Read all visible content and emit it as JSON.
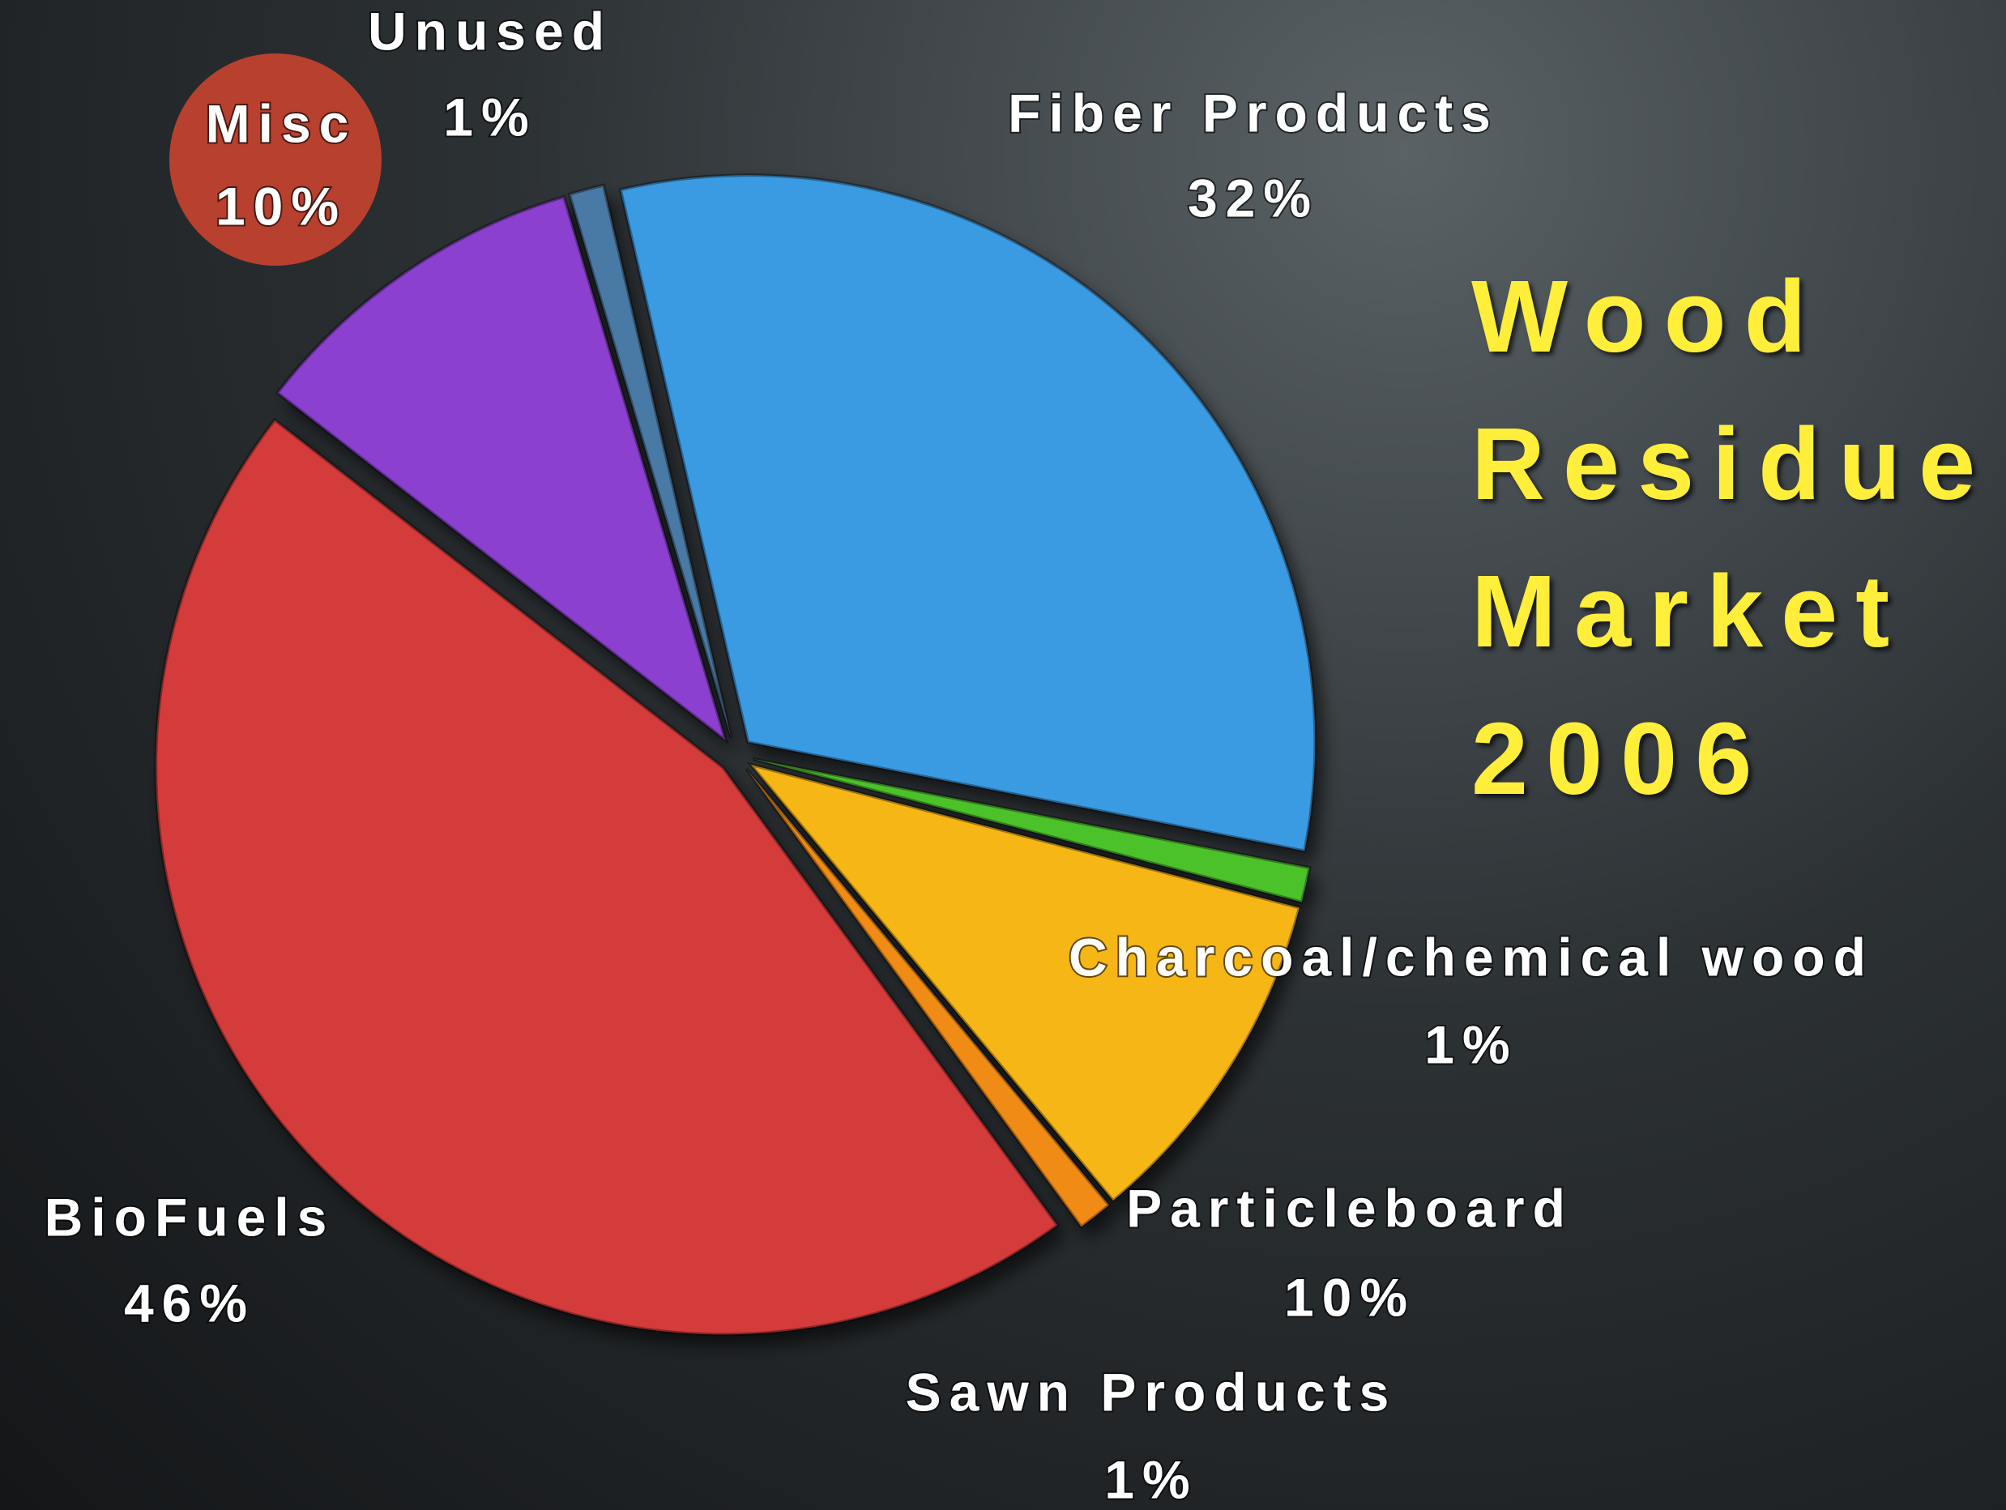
{
  "chart_data": {
    "type": "pie",
    "title": "Wood Residue Market 2006",
    "categories": [
      "Fiber Products",
      "Charcoal/chemical wood",
      "Particleboard",
      "Sawn Products",
      "BioFuels",
      "Misc",
      "Unused"
    ],
    "values": [
      32,
      1,
      10,
      1,
      46,
      10,
      1
    ],
    "value_labels": [
      "32%",
      "1%",
      "10%",
      "1%",
      "46%",
      "10%",
      "1%"
    ],
    "colors": [
      "#3b9be2",
      "#4cc229",
      "#f6b614",
      "#f08b14",
      "#d43b3b",
      "#8b40cf",
      "#4a7aa6"
    ]
  }
}
